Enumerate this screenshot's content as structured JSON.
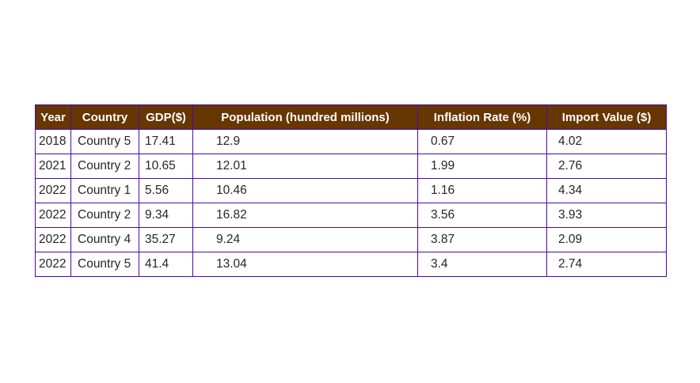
{
  "chart_data": {
    "type": "table",
    "columns": [
      "Year",
      "Country",
      "GDP($)",
      "Population (hundred millions)",
      "Inflation Rate (%)",
      "Import Value ($)"
    ],
    "rows": [
      [
        "2018",
        "Country 5",
        "17.41",
        "12.9",
        "0.67",
        "4.02"
      ],
      [
        "2021",
        "Country 2",
        "10.65",
        "12.01",
        "1.99",
        "2.76"
      ],
      [
        "2022",
        "Country 1",
        "5.56",
        "10.46",
        "1.16",
        "4.34"
      ],
      [
        "2022",
        "Country 2",
        "9.34",
        "16.82",
        "3.56",
        "3.93"
      ],
      [
        "2022",
        "Country 4",
        "35.27",
        "9.24",
        "3.87",
        "2.09"
      ],
      [
        "2022",
        "Country 5",
        "41.4",
        "13.04",
        "3.4",
        "2.74"
      ]
    ]
  },
  "colors": {
    "header_background": "#673603",
    "header_text": "#ffffff",
    "border": "#4b0a9e",
    "cell_text": "#262626"
  }
}
